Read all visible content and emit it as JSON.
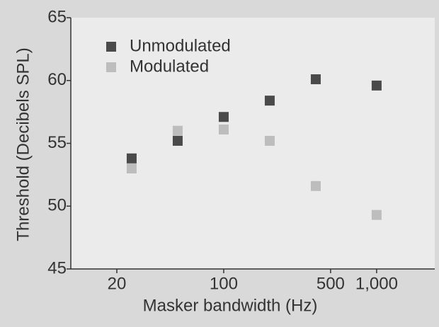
{
  "chart_data": {
    "type": "scatter",
    "x_label": "Masker bandwidth (Hz)",
    "y_label": "Threshold (Decibels SPL)",
    "x": [
      25,
      50,
      100,
      200,
      400,
      1000
    ],
    "series": [
      {
        "name": "Unmodulated",
        "color": "#4a4a4a",
        "values": [
          53.8,
          55.2,
          57.1,
          58.4,
          60.1,
          59.6
        ]
      },
      {
        "name": "Modulated",
        "color": "#bdbdbd",
        "values": [
          53.0,
          56.0,
          56.1,
          55.2,
          51.6,
          49.3
        ]
      }
    ],
    "xscale": "log",
    "xlim": [
      10,
      2400
    ],
    "xticks": [
      20,
      100,
      500,
      {
        "value": 1000,
        "label": "1,000"
      }
    ],
    "ylim": [
      45,
      65
    ],
    "yticks": [
      45,
      50,
      55,
      60,
      65
    ],
    "legend": "upper-left"
  }
}
